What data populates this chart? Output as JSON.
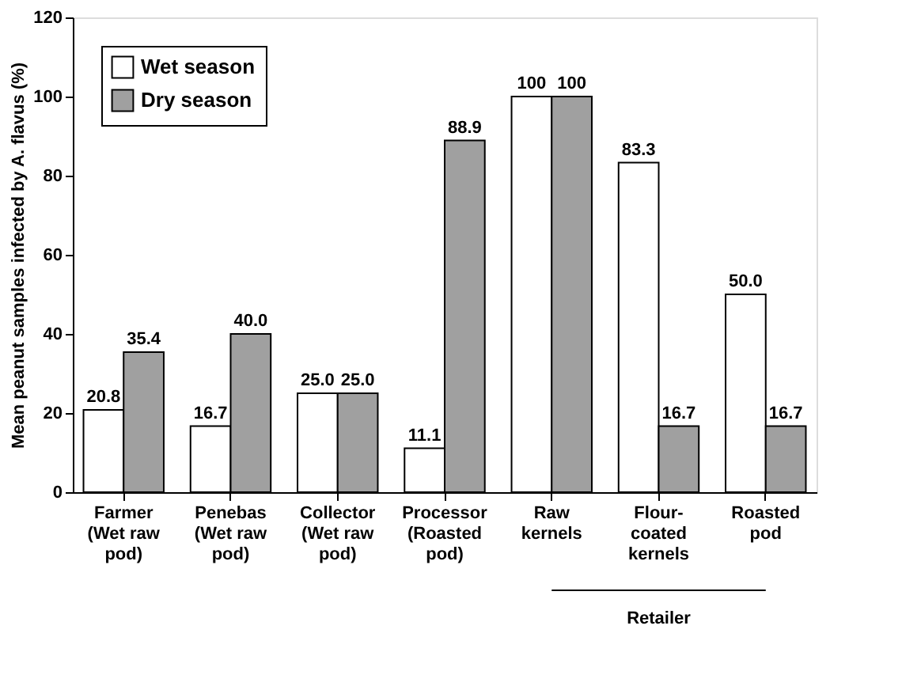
{
  "chart_data": {
    "type": "bar",
    "ylabel": "Mean peanut samples infected by A. flavus (%)",
    "categories": [
      "Farmer\n(Wet raw\npod)",
      "Penebas\n(Wet raw\npod)",
      "Collector\n(Wet raw\npod)",
      "Processor\n(Roasted\npod)",
      "Raw\nkernels",
      "Flour-\ncoated\nkernels",
      "Roasted\npod"
    ],
    "series": [
      {
        "name": "Wet season",
        "color": "#ffffff",
        "values": [
          20.8,
          16.7,
          25.0,
          11.1,
          100,
          83.3,
          50.0
        ],
        "value_labels": [
          "20.8",
          "16.7",
          "25.0",
          "11.1",
          "100",
          "83.3",
          "50.0"
        ]
      },
      {
        "name": "Dry season",
        "color": "#a0a0a0",
        "values": [
          35.4,
          40.0,
          25.0,
          88.9,
          100,
          16.7,
          16.7
        ],
        "value_labels": [
          "35.4",
          "40.0",
          "25.0",
          "88.9",
          "100",
          "16.7",
          "16.7"
        ]
      }
    ],
    "ylim": [
      0,
      120
    ],
    "yticks": [
      0,
      20,
      40,
      60,
      80,
      100,
      120
    ],
    "grid": false,
    "legend": "top left",
    "annotations": [
      "Retailer"
    ]
  }
}
